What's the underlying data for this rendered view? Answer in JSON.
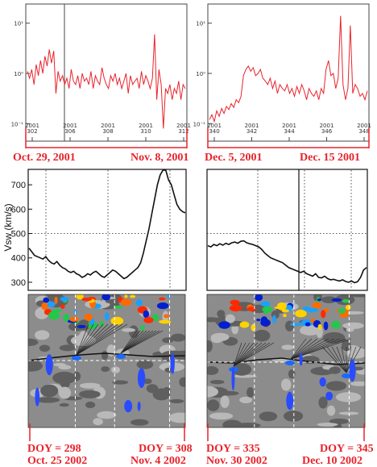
{
  "colors": {
    "red": "#e8232b",
    "dark": "#111111",
    "gray_a": "#8c8c8c",
    "gray_b": "#b9b9b9",
    "gray_c": "#5f5f5f"
  },
  "top_panels": {
    "yticks": [
      "10¹",
      "10⁰",
      "10⁻¹"
    ],
    "left": {
      "start": "Oct. 29, 2001",
      "end": "Nov. 8, 2001",
      "xticks": [
        "2001\n302",
        "2001\n306",
        "2001\n308",
        "2001\n310",
        "2001\n312"
      ]
    },
    "right": {
      "start": "Dec. 5, 2001",
      "end": "Dec. 15 2001",
      "xticks": [
        "2001\n340",
        "2001\n342",
        "2001\n344",
        "2001\n346",
        "2001\n348"
      ]
    }
  },
  "mid_panels": {
    "ylabel": "Vsw (km/s)",
    "yticks": [
      "700",
      "600",
      "500",
      "400",
      "300"
    ]
  },
  "bottom_panels": {
    "left": {
      "start_doy": "DOY = 298",
      "start_date": "Oct. 25 2002",
      "end_doy": "DOY = 308",
      "end_date": "Nov. 4 2002"
    },
    "right": {
      "start_doy": "DOY = 335",
      "start_date": "Nov. 30 2002",
      "end_doy": "DOY = 345",
      "end_date": "Dec. 10 2002"
    }
  },
  "chart_data": [
    {
      "type": "line",
      "panel": "top-left",
      "yscale": "log",
      "ylim": [
        0.05,
        20
      ],
      "values": [
        1.1,
        0.8,
        1.2,
        0.6,
        1.5,
        0.9,
        1.8,
        1.0,
        2.2,
        1.4,
        3.0,
        1.6,
        2.8,
        0.4,
        1.1,
        0.7,
        0.9,
        0.6,
        0.8,
        0.5,
        1.2,
        0.7,
        0.6,
        0.9,
        0.5,
        1.0,
        0.7,
        0.8,
        0.6,
        1.1,
        0.5,
        0.9,
        0.7,
        0.6,
        1.3,
        0.8,
        0.6,
        0.5,
        0.9,
        0.7,
        1.0,
        0.6,
        0.8,
        0.5,
        0.7,
        1.0,
        0.4,
        0.9,
        0.6,
        0.7,
        0.8,
        0.5,
        1.1,
        0.6,
        0.9,
        0.7,
        0.5,
        0.8,
        6.0,
        0.3,
        1.2,
        0.6,
        0.08,
        0.5,
        0.4,
        0.6,
        0.3,
        0.5,
        0.4,
        0.7,
        0.3,
        0.6,
        0.5
      ]
    },
    {
      "type": "line",
      "panel": "top-right",
      "yscale": "log",
      "ylim": [
        0.05,
        20
      ],
      "values": [
        0.12,
        0.15,
        0.11,
        0.18,
        0.14,
        0.2,
        0.16,
        0.22,
        0.19,
        0.25,
        0.21,
        0.3,
        0.26,
        0.35,
        0.9,
        1.2,
        1.4,
        1.1,
        1.3,
        0.9,
        1.0,
        1.2,
        0.8,
        0.7,
        0.6,
        0.8,
        0.5,
        0.7,
        0.4,
        0.6,
        0.5,
        0.45,
        0.6,
        0.4,
        0.5,
        0.35,
        0.55,
        0.4,
        0.6,
        0.45,
        0.3,
        0.5,
        0.4,
        0.35,
        0.45,
        0.3,
        0.5,
        0.4,
        1.2,
        1.8,
        0.9,
        1.0,
        0.5,
        0.8,
        14.0,
        0.6,
        0.3,
        0.5,
        9.0,
        0.4,
        0.6,
        0.5,
        0.35,
        0.4,
        0.3,
        0.45
      ]
    },
    {
      "type": "line",
      "panel": "middle-left",
      "ylabel": "Vsw (km/s)",
      "ylim": [
        270,
        760
      ],
      "values": [
        440,
        425,
        410,
        405,
        400,
        395,
        405,
        390,
        380,
        375,
        385,
        370,
        360,
        355,
        345,
        340,
        345,
        335,
        330,
        320,
        325,
        335,
        330,
        340,
        345,
        335,
        325,
        320,
        330,
        340,
        350,
        345,
        335,
        325,
        315,
        320,
        330,
        340,
        350,
        360,
        380,
        420,
        470,
        520,
        580,
        640,
        700,
        740,
        760,
        760,
        720,
        700,
        660,
        620,
        600,
        590,
        585
      ]
    },
    {
      "type": "line",
      "panel": "middle-right",
      "ylabel": "Vsw (km/s)",
      "ylim": [
        270,
        760
      ],
      "values": [
        450,
        445,
        455,
        450,
        458,
        452,
        460,
        455,
        462,
        465,
        460,
        468,
        470,
        462,
        458,
        455,
        450,
        445,
        435,
        420,
        410,
        400,
        395,
        390,
        385,
        380,
        370,
        360,
        355,
        350,
        345,
        340,
        345,
        335,
        330,
        325,
        335,
        320,
        318,
        325,
        315,
        310,
        312,
        308,
        305,
        310,
        303,
        300,
        305,
        298,
        302,
        320,
        350,
        360
      ]
    }
  ]
}
